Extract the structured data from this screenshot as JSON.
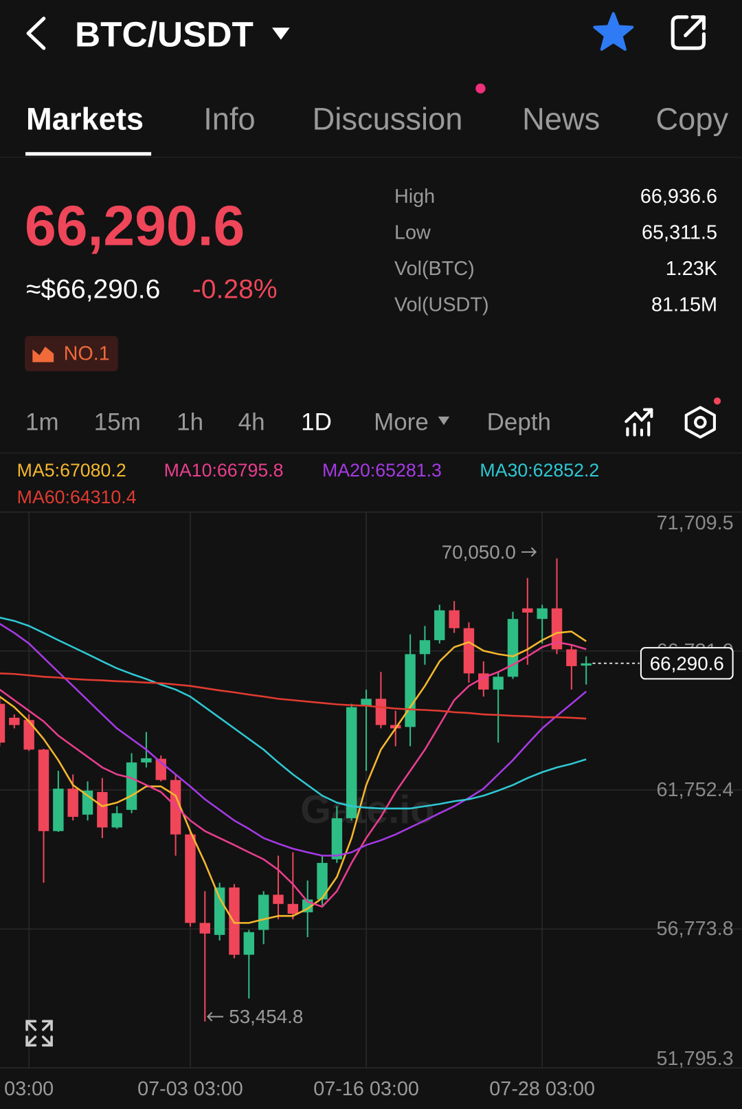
{
  "header": {
    "title": "BTC/USDT"
  },
  "tabs": [
    "Markets",
    "Info",
    "Discussion",
    "News",
    "Copy"
  ],
  "ticker": {
    "price": "66,290.6",
    "fiat": "≈$66,290.6",
    "change": "-0.28%",
    "rank": "NO.1"
  },
  "stats": [
    {
      "label": "High",
      "value": "66,936.6"
    },
    {
      "label": "Low",
      "value": "65,311.5"
    },
    {
      "label": "Vol(BTC)",
      "value": "1.23K"
    },
    {
      "label": "Vol(USDT)",
      "value": "81.15M"
    }
  ],
  "intervals": [
    "1m",
    "15m",
    "1h",
    "4h",
    "1D",
    "More",
    "Depth"
  ],
  "chart_data": {
    "type": "candlestick",
    "categories": [
      null,
      null,
      "03:00",
      null,
      null,
      null,
      null,
      null,
      null,
      null,
      null,
      null,
      null,
      "07-03 03:00",
      null,
      null,
      null,
      null,
      null,
      null,
      null,
      null,
      null,
      null,
      null,
      "07-16 03:00",
      null,
      null,
      null,
      null,
      null,
      null,
      null,
      null,
      null,
      null,
      null,
      "07-28 03:00",
      null,
      null,
      null
    ],
    "open": [
      64840,
      64340,
      64260,
      63200,
      60280,
      61800,
      60870,
      61680,
      60410,
      61040,
      62740,
      62870,
      62110,
      60160,
      56990,
      56560,
      58260,
      55850,
      56740,
      58000,
      57670,
      57370,
      57830,
      59270,
      60740,
      64770,
      65020,
      64080,
      64010,
      66620,
      67120,
      68190,
      67550,
      65930,
      65350,
      65810,
      68260,
      67880,
      68260,
      66790,
      66210
    ],
    "high": [
      65100,
      64460,
      64460,
      63230,
      62440,
      62310,
      62060,
      62180,
      61170,
      63070,
      63830,
      62990,
      62310,
      60280,
      58130,
      58430,
      58380,
      56740,
      58130,
      59400,
      59520,
      58510,
      59400,
      61170,
      64840,
      65350,
      65980,
      64590,
      67330,
      67630,
      68390,
      68520,
      67760,
      66360,
      65980,
      68140,
      69350,
      68390,
      70050.0,
      66950,
      66540
    ],
    "low": [
      63320,
      63960,
      63150,
      58430,
      60250,
      60660,
      60660,
      60030,
      60360,
      60920,
      62560,
      62060,
      59400,
      56860,
      53454.8,
      56360,
      55720,
      54280,
      56230,
      57120,
      57120,
      56480,
      57620,
      59140,
      60660,
      62440,
      63960,
      63320,
      63320,
      66240,
      67000,
      67380,
      65600,
      65100,
      63450,
      65730,
      66240,
      67000,
      66620,
      65350,
      65530
    ],
    "close": [
      63450,
      64080,
      63200,
      60280,
      61800,
      60790,
      61730,
      60410,
      60920,
      62740,
      62890,
      62110,
      60160,
      56990,
      56610,
      58260,
      55850,
      56660,
      58000,
      57670,
      57320,
      57830,
      59140,
      60740,
      64720,
      65020,
      64080,
      63960,
      66620,
      67120,
      68190,
      67550,
      65930,
      65350,
      65810,
      67880,
      68110,
      68260,
      66790,
      66190,
      66290.6
    ],
    "up_color": "#2ebd85",
    "down_color": "#f0465a",
    "series": [
      {
        "name": "MA5:67080.2",
        "type": "line",
        "color": "#f5b82e",
        "values": [
          65100,
          64720,
          64210,
          63580,
          62820,
          61930,
          61550,
          61170,
          61300,
          61550,
          61880,
          61880,
          61550,
          60280,
          59140,
          57880,
          56990,
          56990,
          57120,
          57240,
          57240,
          57500,
          57880,
          58640,
          60030,
          61930,
          63200,
          63960,
          64720,
          65480,
          66360,
          66870,
          67050,
          66740,
          66620,
          66540,
          66790,
          67120,
          67380,
          67430,
          67080.2
        ]
      },
      {
        "name": "MA10:66795.8",
        "type": "line",
        "color": "#ea3e8f",
        "values": [
          65350,
          64970,
          64590,
          64210,
          63700,
          63320,
          62940,
          62560,
          62310,
          62180,
          61930,
          61680,
          61170,
          60660,
          60280,
          60030,
          59780,
          59520,
          59270,
          58890,
          58380,
          57750,
          57570,
          58130,
          59140,
          60030,
          60790,
          61680,
          62440,
          63200,
          64080,
          64970,
          65480,
          65780,
          65980,
          66240,
          66540,
          66870,
          67050,
          66950,
          66795.8
        ]
      },
      {
        "name": "MA20:65281.3",
        "type": "line",
        "color": "#a63ae6",
        "values": [
          67710,
          67380,
          67000,
          66490,
          65980,
          65480,
          64970,
          64460,
          63960,
          63580,
          63200,
          62740,
          62310,
          61880,
          61420,
          61040,
          60660,
          60360,
          60030,
          59830,
          59650,
          59520,
          59400,
          59400,
          59520,
          59780,
          59950,
          60160,
          60410,
          60660,
          60920,
          61170,
          61470,
          61800,
          62310,
          62820,
          63400,
          63960,
          64410,
          64840,
          65281.3
        ]
      },
      {
        "name": "MA30:62852.2",
        "type": "line",
        "color": "#2fc8d4",
        "values": [
          67930,
          67810,
          67630,
          67380,
          67120,
          66870,
          66620,
          66360,
          66110,
          65910,
          65730,
          65530,
          65350,
          65100,
          64720,
          64340,
          63960,
          63580,
          63200,
          62740,
          62310,
          61930,
          61550,
          61300,
          61170,
          61120,
          61090,
          61090,
          61090,
          61170,
          61250,
          61350,
          61420,
          61550,
          61730,
          61930,
          62180,
          62390,
          62560,
          62690,
          62852.2
        ]
      },
      {
        "name": "MA60:64310.4",
        "type": "line",
        "color": "#e23b30",
        "values": [
          65930,
          65910,
          65860,
          65810,
          65780,
          65730,
          65700,
          65680,
          65650,
          65630,
          65600,
          65580,
          65530,
          65480,
          65400,
          65320,
          65250,
          65170,
          65100,
          65020,
          64970,
          64920,
          64870,
          64820,
          64790,
          64770,
          64720,
          64670,
          64640,
          64620,
          64590,
          64540,
          64510,
          64460,
          64440,
          64410,
          64390,
          64360,
          64360,
          64340,
          64310.4
        ]
      }
    ],
    "ylim": [
      51795.3,
      71709.5
    ],
    "yticks": [
      {
        "value": 51795.3,
        "label": "51,795.3"
      },
      {
        "value": 56773.8,
        "label": "56,773.8"
      },
      {
        "value": 61752.4,
        "label": "61,752.4"
      },
      {
        "value": 66731.0,
        "label": "66,731.0"
      },
      {
        "value": 71709.5,
        "label": "71,709.5"
      }
    ],
    "grid": true,
    "annotations": {
      "high": {
        "value": 70050.0,
        "label": "70,050.0"
      },
      "low": {
        "value": 53454.8,
        "label": "53,454.8"
      },
      "last": {
        "value": 66290.6,
        "label": "66,290.6"
      }
    },
    "watermark": "Gate.io"
  }
}
